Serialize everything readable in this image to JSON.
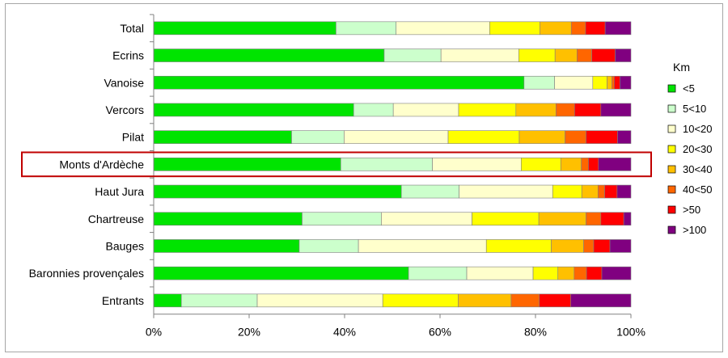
{
  "chart_data": {
    "type": "bar",
    "orientation": "horizontal",
    "stacked": true,
    "percent": true,
    "categories": [
      "Total",
      "Ecrins",
      "Vanoise",
      "Vercors",
      "Pilat",
      "Monts d'Ardèche",
      "Haut Jura",
      "Chartreuse",
      "Bauges",
      "Baronnies provençales",
      "Entrants"
    ],
    "highlighted_category": "Monts d'Ardèche",
    "xlim": [
      0,
      100
    ],
    "x_ticks": [
      "0%",
      "20%",
      "40%",
      "60%",
      "80%",
      "100%"
    ],
    "legend_title": "Km",
    "legend_position": "right",
    "grid": false,
    "series": [
      {
        "name": "<5",
        "color": "#00e400",
        "values": [
          38.2,
          48.3,
          77.6,
          41.9,
          28.9,
          39.2,
          51.9,
          31.1,
          30.5,
          53.4,
          5.8
        ]
      },
      {
        "name": "5<10",
        "color": "#ccffcc",
        "values": [
          12.6,
          11.9,
          6.4,
          8.3,
          11.0,
          19.2,
          12.1,
          16.6,
          12.4,
          12.2,
          15.9
        ]
      },
      {
        "name": "10<20",
        "color": "#ffffcc",
        "values": [
          19.6,
          16.3,
          8.0,
          13.7,
          21.8,
          18.6,
          19.6,
          19.0,
          26.8,
          13.9,
          26.3
        ]
      },
      {
        "name": "20<30",
        "color": "#ffff00",
        "values": [
          10.5,
          7.6,
          3.0,
          12.0,
          14.9,
          8.3,
          6.1,
          14.0,
          13.6,
          5.2,
          15.8
        ]
      },
      {
        "name": "30<40",
        "color": "#ffc000",
        "values": [
          6.6,
          4.6,
          1.0,
          8.4,
          9.6,
          4.3,
          3.4,
          9.9,
          6.8,
          3.4,
          11.1
        ]
      },
      {
        "name": "40<50",
        "color": "#ff6600",
        "values": [
          3.0,
          3.1,
          0.5,
          3.9,
          4.4,
          1.5,
          1.4,
          3.1,
          2.1,
          2.6,
          5.9
        ]
      },
      {
        "name": ">50",
        "color": "#ff0000",
        "values": [
          4.1,
          4.9,
          1.2,
          5.5,
          6.6,
          2.1,
          2.6,
          4.8,
          3.4,
          3.2,
          6.6
        ]
      },
      {
        "name": ">100",
        "color": "#800080",
        "values": [
          5.4,
          3.3,
          2.3,
          6.3,
          2.8,
          6.8,
          2.9,
          1.5,
          4.4,
          6.1,
          12.6
        ]
      }
    ]
  }
}
